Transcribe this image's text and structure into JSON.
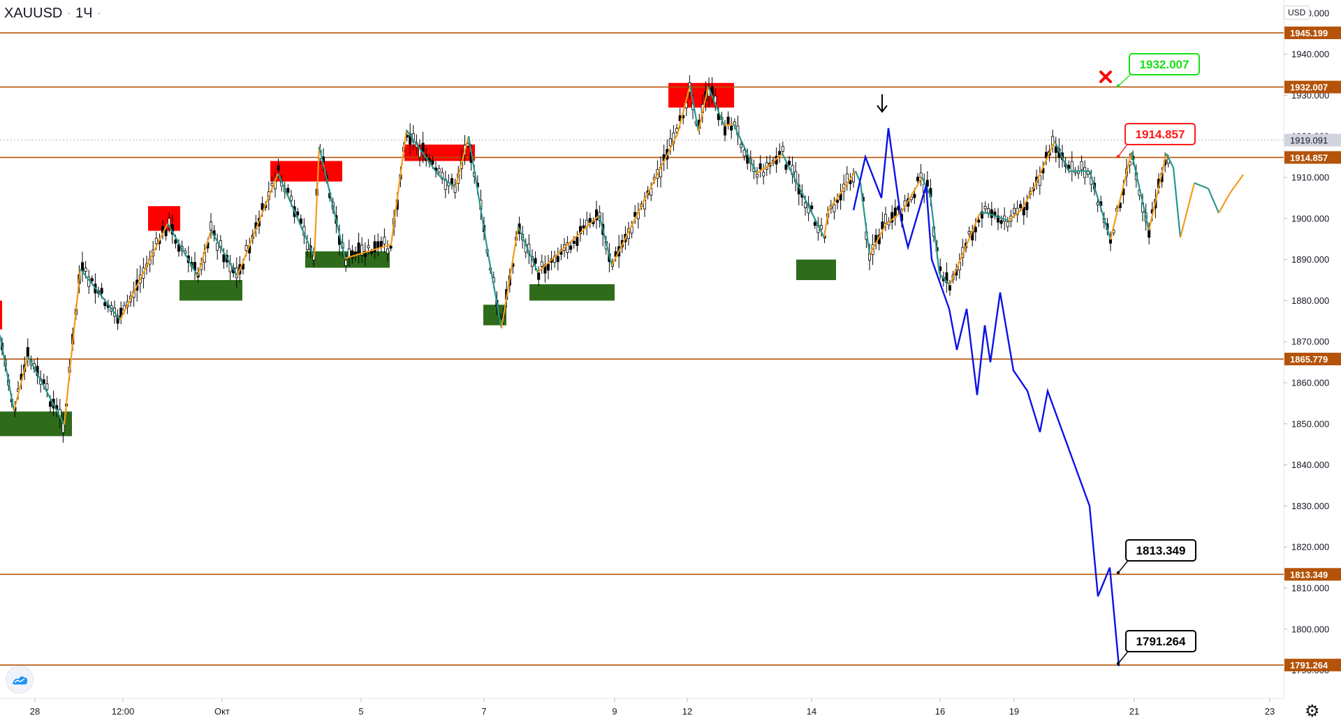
{
  "header": {
    "symbol": "XAUUSD",
    "interval": "1Ч",
    "currency": "USD"
  },
  "colors": {
    "hline": "#b45309",
    "resistance": "#ff0000",
    "support": "#2e6b1a",
    "zigzag_up": "#f59a1a",
    "zigzag_down": "#26988a",
    "projection": "#0a12e6",
    "candle": "#000000",
    "target_green": "#16e016",
    "target_red": "#ff1a1a",
    "target_black": "#000000"
  },
  "icons": {
    "cancel": "red-x-icon",
    "arrow": "down-arrow-icon",
    "settings": "gear-icon",
    "logo": "tradingview-logo-icon"
  },
  "chart_data": {
    "type": "candlestick",
    "ylim": [
      1789,
      1962
    ],
    "y_ticks": [
      "1950.000",
      "1940.000",
      "1930.000",
      "1920.000",
      "1910.000",
      "1900.000",
      "1890.000",
      "1880.000",
      "1870.000",
      "1860.000",
      "1850.000",
      "1840.000",
      "1830.000",
      "1820.000",
      "1810.000",
      "1800.000",
      "1790.000"
    ],
    "x_ticks": [
      "28",
      "12:00",
      "Окт",
      "5",
      "7",
      "9",
      "12",
      "14",
      "16",
      "19",
      "21",
      "23"
    ],
    "current_price": "1919.091",
    "horizontal_levels": [
      "1945.199",
      "1932.007",
      "1914.857",
      "1865.779",
      "1813.349",
      "1791.264"
    ],
    "targets": [
      {
        "label": "1932.007",
        "style": "green",
        "status": "cancelled"
      },
      {
        "label": "1914.857",
        "style": "red"
      },
      {
        "label": "1813.349",
        "style": "black"
      },
      {
        "label": "1791.264",
        "style": "black"
      }
    ],
    "resistance_zones": [
      {
        "name": "Sep 29",
        "low": 1897,
        "high": 1903
      },
      {
        "name": "Oct 2",
        "low": 1909,
        "high": 1914
      },
      {
        "name": "Oct 6",
        "low": 1914,
        "high": 1918
      },
      {
        "name": "Oct 12",
        "low": 1927,
        "high": 1933
      }
    ],
    "support_zones": [
      {
        "name": "Sep 28",
        "low": 1847,
        "high": 1853
      },
      {
        "name": "Sep 30",
        "low": 1880,
        "high": 1885
      },
      {
        "name": "Oct 2",
        "low": 1888,
        "high": 1892
      },
      {
        "name": "Oct 7",
        "low": 1874,
        "high": 1879
      },
      {
        "name": "Oct 8",
        "low": 1880,
        "high": 1884
      },
      {
        "name": "Oct 14",
        "low": 1885,
        "high": 1890
      }
    ],
    "projection_path": [
      1902,
      1915,
      1905,
      1922,
      1900,
      1893,
      1908,
      1890,
      1878,
      1868,
      1878,
      1857,
      1874,
      1865,
      1882,
      1863,
      1858,
      1848,
      1858,
      1830,
      1808,
      1815,
      1791
    ]
  }
}
